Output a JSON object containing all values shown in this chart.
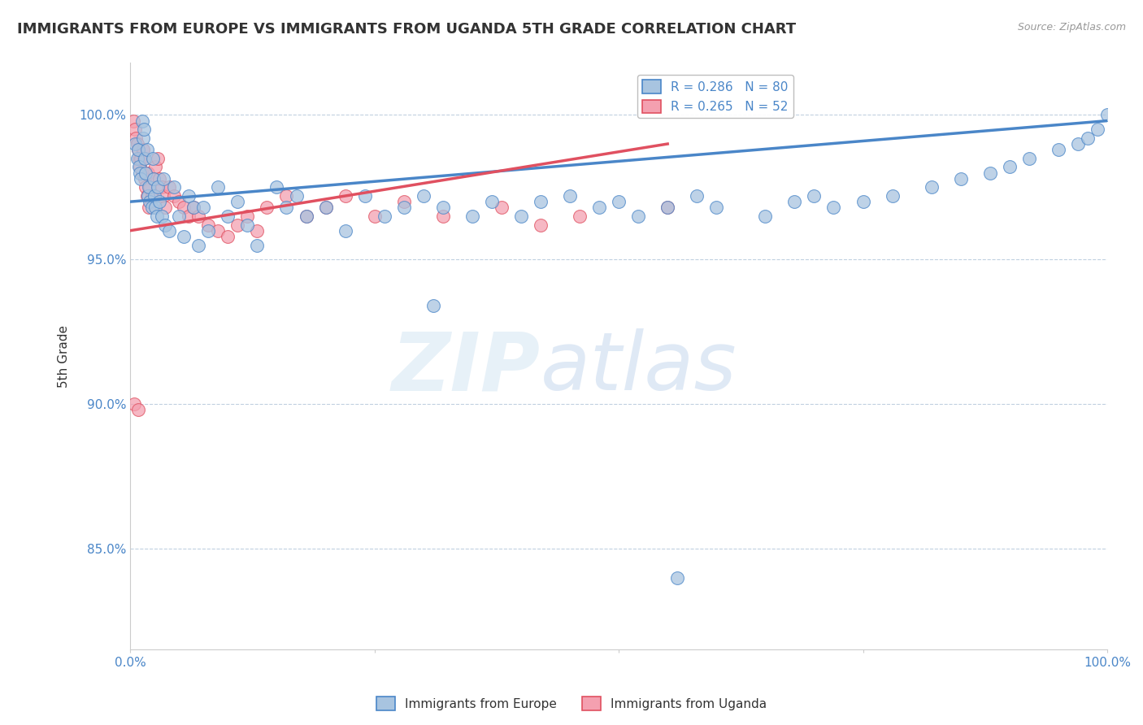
{
  "title": "IMMIGRANTS FROM EUROPE VS IMMIGRANTS FROM UGANDA 5TH GRADE CORRELATION CHART",
  "source": "Source: ZipAtlas.com",
  "ylabel": "5th Grade",
  "xlim": [
    0.0,
    1.0
  ],
  "ylim": [
    0.815,
    1.018
  ],
  "yticks": [
    0.85,
    0.9,
    0.95,
    1.0
  ],
  "ytick_labels": [
    "85.0%",
    "90.0%",
    "95.0%",
    "100.0%"
  ],
  "legend_europe_label": "Immigrants from Europe",
  "legend_uganda_label": "Immigrants from Uganda",
  "R_europe": 0.286,
  "N_europe": 80,
  "R_uganda": 0.265,
  "N_uganda": 52,
  "europe_color": "#a8c4e0",
  "uganda_color": "#f4a0b0",
  "europe_line_color": "#4a86c8",
  "uganda_line_color": "#e05060",
  "title_color": "#333333",
  "axis_color": "#4a86c8",
  "background_color": "#ffffff",
  "europe_x": [
    0.005,
    0.007,
    0.008,
    0.009,
    0.01,
    0.011,
    0.012,
    0.013,
    0.014,
    0.015,
    0.016,
    0.017,
    0.018,
    0.019,
    0.02,
    0.022,
    0.023,
    0.024,
    0.025,
    0.026,
    0.027,
    0.028,
    0.03,
    0.032,
    0.034,
    0.036,
    0.04,
    0.045,
    0.05,
    0.055,
    0.06,
    0.065,
    0.07,
    0.075,
    0.08,
    0.09,
    0.1,
    0.11,
    0.12,
    0.13,
    0.15,
    0.16,
    0.17,
    0.18,
    0.2,
    0.22,
    0.24,
    0.26,
    0.28,
    0.3,
    0.32,
    0.35,
    0.37,
    0.4,
    0.42,
    0.45,
    0.48,
    0.5,
    0.52,
    0.55,
    0.58,
    0.6,
    0.65,
    0.68,
    0.7,
    0.72,
    0.75,
    0.78,
    0.82,
    0.85,
    0.88,
    0.9,
    0.92,
    0.95,
    0.97,
    0.98,
    0.99,
    1.0,
    0.31,
    0.56
  ],
  "europe_y": [
    0.99,
    0.985,
    0.988,
    0.982,
    0.98,
    0.978,
    0.998,
    0.992,
    0.995,
    0.985,
    0.98,
    0.988,
    0.972,
    0.975,
    0.97,
    0.968,
    0.985,
    0.978,
    0.972,
    0.968,
    0.965,
    0.975,
    0.97,
    0.965,
    0.978,
    0.962,
    0.96,
    0.975,
    0.965,
    0.958,
    0.972,
    0.968,
    0.955,
    0.968,
    0.96,
    0.975,
    0.965,
    0.97,
    0.962,
    0.955,
    0.975,
    0.968,
    0.972,
    0.965,
    0.968,
    0.96,
    0.972,
    0.965,
    0.968,
    0.972,
    0.968,
    0.965,
    0.97,
    0.965,
    0.97,
    0.972,
    0.968,
    0.97,
    0.965,
    0.968,
    0.972,
    0.968,
    0.965,
    0.97,
    0.972,
    0.968,
    0.97,
    0.972,
    0.975,
    0.978,
    0.98,
    0.982,
    0.985,
    0.988,
    0.99,
    0.992,
    0.995,
    1.0,
    0.934,
    0.84
  ],
  "uganda_x": [
    0.003,
    0.005,
    0.006,
    0.007,
    0.008,
    0.009,
    0.01,
    0.011,
    0.012,
    0.013,
    0.014,
    0.015,
    0.016,
    0.017,
    0.018,
    0.019,
    0.02,
    0.022,
    0.024,
    0.026,
    0.028,
    0.03,
    0.032,
    0.034,
    0.036,
    0.04,
    0.045,
    0.05,
    0.055,
    0.06,
    0.065,
    0.07,
    0.08,
    0.09,
    0.1,
    0.11,
    0.12,
    0.13,
    0.14,
    0.16,
    0.18,
    0.2,
    0.22,
    0.25,
    0.28,
    0.32,
    0.38,
    0.42,
    0.46,
    0.55,
    0.004,
    0.008
  ],
  "uganda_y": [
    0.998,
    0.995,
    0.992,
    0.99,
    0.988,
    0.985,
    0.982,
    0.985,
    0.98,
    0.988,
    0.985,
    0.978,
    0.975,
    0.972,
    0.98,
    0.968,
    0.975,
    0.972,
    0.978,
    0.982,
    0.985,
    0.978,
    0.975,
    0.972,
    0.968,
    0.975,
    0.972,
    0.97,
    0.968,
    0.965,
    0.968,
    0.965,
    0.962,
    0.96,
    0.958,
    0.962,
    0.965,
    0.96,
    0.968,
    0.972,
    0.965,
    0.968,
    0.972,
    0.965,
    0.97,
    0.965,
    0.968,
    0.962,
    0.965,
    0.968,
    0.9,
    0.898
  ],
  "europe_trendline_x": [
    0.0,
    1.0
  ],
  "europe_trendline_y": [
    0.97,
    0.998
  ],
  "uganda_trendline_x": [
    0.0,
    0.55
  ],
  "uganda_trendline_y": [
    0.96,
    0.99
  ]
}
